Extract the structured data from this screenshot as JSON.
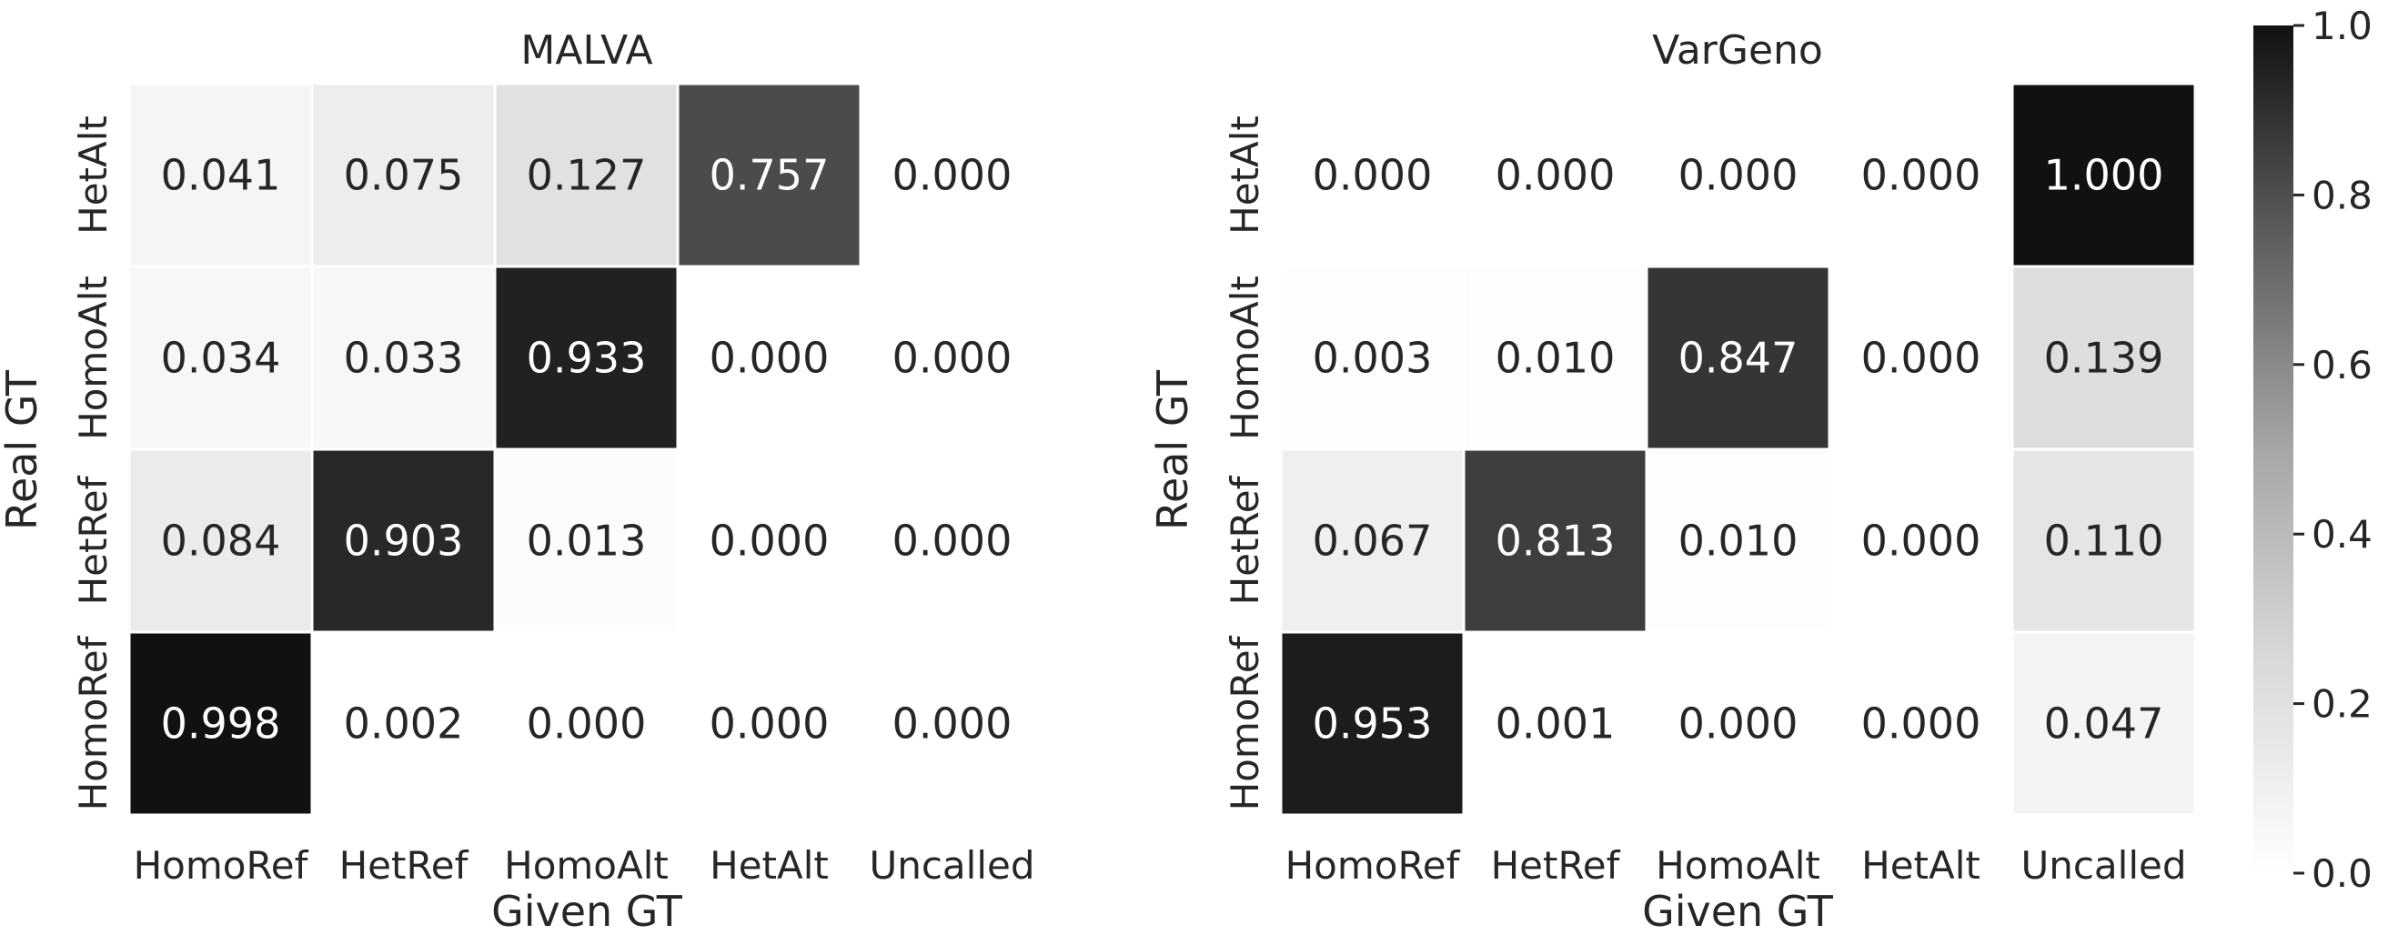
{
  "chart_data": [
    {
      "type": "heatmap",
      "title": "MALVA",
      "xlabel": "Given GT",
      "ylabel": "Real GT",
      "x_categories": [
        "HomoRef",
        "HetRef",
        "HomoAlt",
        "HetAlt",
        "Uncalled"
      ],
      "y_categories": [
        "HetAlt",
        "HomoAlt",
        "HetRef",
        "HomoRef"
      ],
      "values": [
        [
          0.041,
          0.075,
          0.127,
          0.757,
          0.0
        ],
        [
          0.034,
          0.033,
          0.933,
          0.0,
          0.0
        ],
        [
          0.084,
          0.903,
          0.013,
          0.0,
          0.0
        ],
        [
          0.998,
          0.002,
          0.0,
          0.0,
          0.0
        ]
      ],
      "value_labels": [
        [
          "0.041",
          "0.075",
          "0.127",
          "0.757",
          "0.000"
        ],
        [
          "0.034",
          "0.033",
          "0.933",
          "0.000",
          "0.000"
        ],
        [
          "0.084",
          "0.903",
          "0.013",
          "0.000",
          "0.000"
        ],
        [
          "0.998",
          "0.002",
          "0.000",
          "0.000",
          "0.000"
        ]
      ]
    },
    {
      "type": "heatmap",
      "title": "VarGeno",
      "xlabel": "Given GT",
      "ylabel": "Real GT",
      "x_categories": [
        "HomoRef",
        "HetRef",
        "HomoAlt",
        "HetAlt",
        "Uncalled"
      ],
      "y_categories": [
        "HetAlt",
        "HomoAlt",
        "HetRef",
        "HomoRef"
      ],
      "values": [
        [
          0.0,
          0.0,
          0.0,
          0.0,
          1.0
        ],
        [
          0.003,
          0.01,
          0.847,
          0.0,
          0.139
        ],
        [
          0.067,
          0.813,
          0.01,
          0.0,
          0.11
        ],
        [
          0.953,
          0.001,
          0.0,
          0.0,
          0.047
        ]
      ],
      "value_labels": [
        [
          "0.000",
          "0.000",
          "0.000",
          "0.000",
          "1.000"
        ],
        [
          "0.003",
          "0.010",
          "0.847",
          "0.000",
          "0.139"
        ],
        [
          "0.067",
          "0.813",
          "0.010",
          "0.000",
          "0.110"
        ],
        [
          "0.953",
          "0.001",
          "0.000",
          "0.000",
          "0.047"
        ]
      ]
    }
  ],
  "colorbar": {
    "range": [
      0.0,
      1.0
    ],
    "ticks": [
      0.0,
      0.2,
      0.4,
      0.6,
      0.8,
      1.0
    ],
    "tick_labels": [
      "0.0",
      "0.2",
      "0.4",
      "0.6",
      "0.8",
      "1.0"
    ],
    "color_low": "#ffffff",
    "color_high": "#111111"
  },
  "colors": {
    "text_dark": "#262626",
    "text_light": "#ffffff",
    "cell_border": "#ffffff"
  }
}
